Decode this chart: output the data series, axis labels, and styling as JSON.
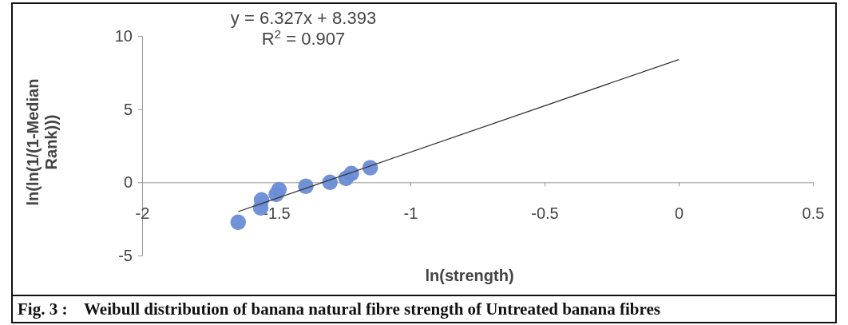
{
  "chart_data": {
    "type": "scatter",
    "xlabel": "ln(strength)",
    "ylabel": "ln(ln(1/(1-Median Rank)))",
    "annotations": [
      "y = 6.327x + 8.393",
      "R$^{2}$ = 0.907",
      "Fig. 3 :    Weibull distribution of banana natural fibre strength of Untreated banana fibres"
    ],
    "series": [
      {
        "color": "#6a8cd6",
        "x": [
          -1.642,
          -1.558,
          -1.555,
          -1.5,
          -1.49,
          -1.39,
          -1.3,
          -1.24,
          -1.22,
          -1.15
        ],
        "values": [
          -2.73,
          -1.75,
          -1.2,
          -0.82,
          -0.5,
          -0.27,
          0.0,
          0.27,
          0.6,
          1.0
        ]
      },
      {
        "type": "line",
        "marker": "none",
        "color": "#333333",
        "x": [
          -1.642,
          0
        ],
        "values": [
          -2.0,
          8.39
        ]
      }
    ],
    "xlim": [
      -2,
      0.5
    ],
    "xticks": [
      -2,
      -1.5,
      -1,
      -0.5,
      0,
      0.5
    ],
    "ylim": [
      -5,
      10
    ],
    "yticks": [
      -5,
      0,
      5,
      10
    ],
    "marker": "circle",
    "line_style": "solid",
    "grid": false
  }
}
